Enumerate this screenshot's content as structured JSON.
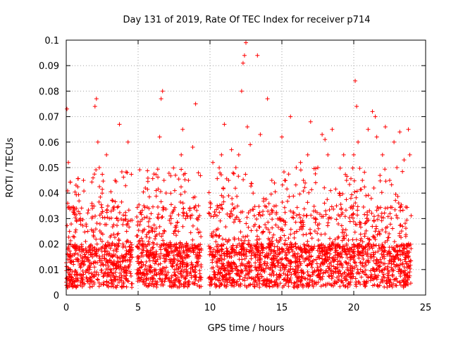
{
  "chart_data": {
    "type": "scatter",
    "title": "Day 131 of 2019, Rate Of TEC Index for receiver p714",
    "xlabel": "GPS time / hours",
    "ylabel": "ROTI / TECUs",
    "xlim": [
      0,
      25
    ],
    "ylim": [
      0,
      0.1
    ],
    "xticks": [
      "0",
      "5",
      "10",
      "15",
      "20",
      "25"
    ],
    "yticks": [
      "0",
      "0.01",
      "0.02",
      "0.03",
      "0.04",
      "0.05",
      "0.06",
      "0.07",
      "0.08",
      "0.09",
      "0.1"
    ],
    "grid": true,
    "marker": "+",
    "color": "#ff0000",
    "data_gaps_hours": [
      [
        4.6,
        4.9
      ],
      [
        9.4,
        9.9
      ]
    ],
    "series": [
      {
        "x": [
          0.05,
          0.1,
          0.15,
          0.2,
          0.3,
          0.5,
          0.7,
          1.0,
          1.2,
          1.5,
          1.8,
          2.0,
          2.1,
          2.2,
          2.3,
          2.5,
          2.8,
          3.0,
          3.2,
          3.4,
          3.5,
          3.7,
          4.0,
          4.2,
          4.3,
          5.0,
          5.2,
          5.4,
          5.5,
          6.2,
          6.5,
          6.6,
          6.7,
          6.8,
          7.0,
          7.3,
          7.6,
          7.8,
          8.0,
          8.1,
          8.3,
          8.5,
          8.8,
          9.0,
          9.2,
          10.2,
          10.5,
          10.8,
          11.0,
          11.3,
          11.5,
          11.8,
          12.0,
          12.2,
          12.3,
          12.4,
          12.5,
          12.6,
          12.8,
          13.0,
          13.3,
          13.5,
          13.7,
          14.0,
          14.3,
          14.6,
          15.0,
          15.2,
          15.6,
          16.0,
          16.3,
          16.5,
          16.8,
          17.0,
          17.5,
          17.8,
          18.0,
          18.2,
          18.5,
          18.8,
          19.0,
          19.3,
          19.5,
          19.8,
          20.0,
          20.1,
          20.2,
          20.3,
          20.6,
          21.0,
          21.3,
          21.5,
          21.6,
          22.0,
          22.2,
          22.5,
          22.8,
          23.0,
          23.2,
          23.5,
          23.8,
          23.9
        ],
        "y": [
          0.073,
          0.036,
          0.052,
          0.02,
          0.01,
          0.012,
          0.018,
          0.03,
          0.045,
          0.025,
          0.035,
          0.074,
          0.077,
          0.06,
          0.05,
          0.04,
          0.055,
          0.03,
          0.02,
          0.045,
          0.03,
          0.067,
          0.015,
          0.025,
          0.06,
          0.015,
          0.02,
          0.035,
          0.042,
          0.015,
          0.062,
          0.077,
          0.08,
          0.045,
          0.02,
          0.03,
          0.047,
          0.025,
          0.055,
          0.065,
          0.03,
          0.045,
          0.058,
          0.075,
          0.035,
          0.052,
          0.035,
          0.055,
          0.067,
          0.045,
          0.057,
          0.05,
          0.055,
          0.08,
          0.091,
          0.094,
          0.099,
          0.066,
          0.059,
          0.04,
          0.094,
          0.063,
          0.025,
          0.077,
          0.045,
          0.035,
          0.062,
          0.045,
          0.07,
          0.05,
          0.052,
          0.045,
          0.055,
          0.068,
          0.05,
          0.063,
          0.061,
          0.055,
          0.065,
          0.035,
          0.04,
          0.055,
          0.045,
          0.038,
          0.055,
          0.084,
          0.074,
          0.06,
          0.045,
          0.065,
          0.072,
          0.07,
          0.062,
          0.055,
          0.066,
          0.045,
          0.06,
          0.05,
          0.064,
          0.053,
          0.065,
          0.055
        ]
      }
    ]
  }
}
